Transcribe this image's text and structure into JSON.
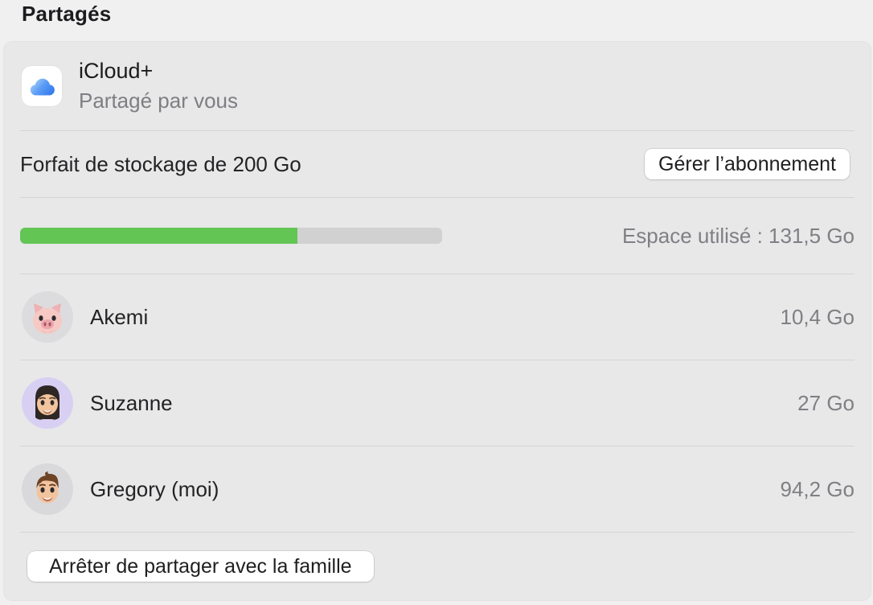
{
  "page": {
    "title": "Partagés",
    "background": "#f0f0f1"
  },
  "card": {
    "background": "#e8e8e9",
    "header": {
      "app_name": "iCloud+",
      "subtitle": "Partagé par vous",
      "icon": "icloud-cloud-icon"
    },
    "plan": {
      "label": "Forfait de stockage de 200 Go",
      "manage_button_label": "Gérer l’abonnement"
    },
    "storage": {
      "usage_label": "Espace utilisé : 131,5 Go",
      "used_gb": 131.5,
      "total_gb": 200,
      "percent_used": 65.75,
      "bar_color": "#62c554",
      "track_color": "#d1d1d1"
    },
    "members": [
      {
        "name": "Akemi",
        "usage": "10,4 Go",
        "avatar": "pig-memoji",
        "avatar_bg": "#dcdcde"
      },
      {
        "name": "Suzanne",
        "usage": "27 Go",
        "avatar": "woman-memoji",
        "avatar_bg": "#d8d0f3"
      },
      {
        "name": "Gregory (moi)",
        "usage": "94,2 Go",
        "avatar": "man-memoji",
        "avatar_bg": "#d9d9db"
      }
    ],
    "stop_button_label": "Arrêter de partager avec la famille"
  }
}
